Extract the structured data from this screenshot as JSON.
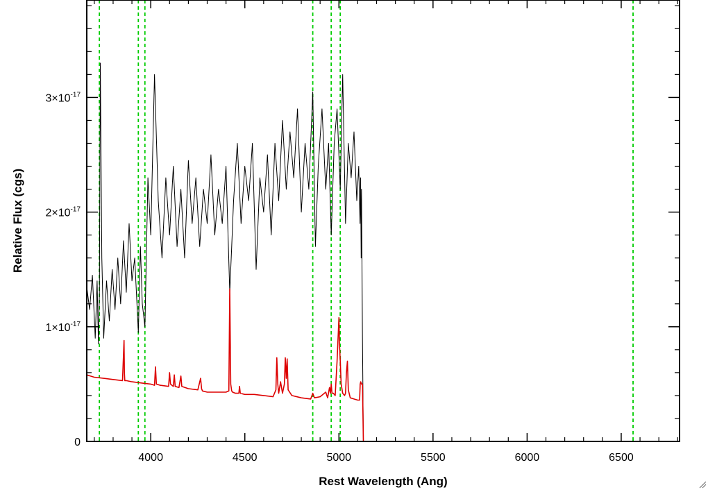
{
  "chart_data": {
    "type": "line",
    "xlabel": "Rest Wavelength (Ang)",
    "ylabel": "Relative Flux (cgs)",
    "xlim": [
      3660,
      6810
    ],
    "ylim": [
      0,
      3.85e-17
    ],
    "x_ticks": [
      {
        "value": 4000,
        "label": "4000"
      },
      {
        "value": 4500,
        "label": "4500"
      },
      {
        "value": 5000,
        "label": "5000"
      },
      {
        "value": 5500,
        "label": "5500"
      },
      {
        "value": 6000,
        "label": "6000"
      },
      {
        "value": 6500,
        "label": "6500"
      }
    ],
    "y_ticks": [
      {
        "value": 0,
        "mant": "0",
        "times": "",
        "base": "",
        "exp": ""
      },
      {
        "value": 1e-17,
        "mant": "1",
        "times": "×",
        "base": "10",
        "exp": "-17"
      },
      {
        "value": 2e-17,
        "mant": "2",
        "times": "×",
        "base": "10",
        "exp": "-17"
      },
      {
        "value": 3e-17,
        "mant": "3",
        "times": "×",
        "base": "10",
        "exp": "-17"
      }
    ],
    "vlines": [
      3727,
      3934,
      3969,
      4861,
      4959,
      5007,
      6563
    ],
    "vline_color": "#00cc00",
    "series": [
      {
        "color": "#000000",
        "x": [
          3660,
          3675,
          3690,
          3705,
          3715,
          3722,
          3727,
          3732,
          3740,
          3750,
          3765,
          3780,
          3795,
          3810,
          3825,
          3840,
          3855,
          3870,
          3885,
          3900,
          3915,
          3934,
          3945,
          3955,
          3969,
          3985,
          4000,
          4020,
          4040,
          4060,
          4080,
          4100,
          4120,
          4140,
          4160,
          4180,
          4200,
          4220,
          4240,
          4260,
          4280,
          4300,
          4320,
          4340,
          4360,
          4380,
          4400,
          4420,
          4430,
          4440,
          4460,
          4480,
          4500,
          4520,
          4540,
          4560,
          4580,
          4600,
          4620,
          4640,
          4660,
          4680,
          4700,
          4720,
          4740,
          4760,
          4780,
          4800,
          4820,
          4840,
          4861,
          4875,
          4890,
          4910,
          4930,
          4945,
          4959,
          4975,
          4990,
          5007,
          5020,
          5035,
          5050,
          5065,
          5080,
          5095,
          5105,
          5112,
          5115,
          5118,
          5120,
          5125,
          5130
        ],
        "y": [
          1.35e-17,
          1.15e-17,
          1.45e-17,
          9e-18,
          1.4e-17,
          8.5e-18,
          1.3e-17,
          3.3e-17,
          1.6e-17,
          9e-18,
          1.4e-17,
          1.05e-17,
          1.5e-17,
          1.15e-17,
          1.6e-17,
          1.2e-17,
          1.75e-17,
          1.3e-17,
          1.9e-17,
          1.4e-17,
          1.6e-17,
          9.5e-18,
          1.7e-17,
          1.2e-17,
          1e-17,
          2.3e-17,
          1.8e-17,
          3.2e-17,
          2.1e-17,
          1.6e-17,
          2.3e-17,
          1.8e-17,
          2.4e-17,
          1.7e-17,
          2.2e-17,
          1.6e-17,
          2.45e-17,
          1.9e-17,
          2.3e-17,
          1.7e-17,
          2.2e-17,
          1.9e-17,
          2.5e-17,
          1.8e-17,
          2.2e-17,
          1.9e-17,
          2.4e-17,
          1.3e-17,
          1.7e-17,
          2.1e-17,
          2.6e-17,
          1.9e-17,
          2.4e-17,
          2.1e-17,
          2.6e-17,
          1.5e-17,
          2.3e-17,
          2e-17,
          2.5e-17,
          1.8e-17,
          2.6e-17,
          2.1e-17,
          2.8e-17,
          2.2e-17,
          2.7e-17,
          2.3e-17,
          2.9e-17,
          2e-17,
          2.6e-17,
          2.2e-17,
          3.05e-17,
          1.7e-17,
          2.4e-17,
          2.9e-17,
          2.2e-17,
          2.6e-17,
          1.8e-17,
          2.6e-17,
          2.9e-17,
          2.2e-17,
          3.2e-17,
          1.9e-17,
          2.6e-17,
          2.3e-17,
          2.7e-17,
          2.1e-17,
          2.4e-17,
          1.9e-17,
          2.3e-17,
          1.6e-17,
          2.2e-17,
          9e-18,
          0
        ]
      },
      {
        "color": "#dd0000",
        "x": [
          3660,
          3700,
          3750,
          3800,
          3850,
          3858,
          3860,
          3862,
          3870,
          3900,
          3950,
          4000,
          4020,
          4025,
          4030,
          4050,
          4095,
          4100,
          4105,
          4120,
          4125,
          4130,
          4150,
          4160,
          4165,
          4200,
          4250,
          4265,
          4270,
          4275,
          4300,
          4340,
          4400,
          4415,
          4420,
          4425,
          4430,
          4435,
          4450,
          4468,
          4472,
          4476,
          4500,
          4550,
          4600,
          4650,
          4665,
          4670,
          4675,
          4680,
          4690,
          4700,
          4710,
          4715,
          4720,
          4725,
          4730,
          4750,
          4800,
          4850,
          4861,
          4870,
          4900,
          4930,
          4940,
          4950,
          4955,
          4959,
          4963,
          4970,
          4980,
          4990,
          5000,
          5003,
          5007,
          5012,
          5020,
          5030,
          5035,
          5040,
          5045,
          5050,
          5060,
          5080,
          5100,
          5110,
          5113,
          5116,
          5120,
          5125,
          5128,
          5130,
          5200,
          5400,
          5600,
          6000,
          6400,
          6810
        ],
        "y": [
          5.8e-18,
          5.6e-18,
          5.5e-18,
          5.4e-18,
          5.3e-18,
          8.8e-18,
          6e-18,
          5.3e-18,
          5.3e-18,
          5.2e-18,
          5.1e-18,
          5e-18,
          4.9e-18,
          6.5e-18,
          5e-18,
          4.9e-18,
          4.8e-18,
          6e-18,
          5e-18,
          4.8e-18,
          5.8e-18,
          4.8e-18,
          4.7e-18,
          5.7e-18,
          4.8e-18,
          4.6e-18,
          4.5e-18,
          5.5e-18,
          4.6e-18,
          4.4e-18,
          4.3e-18,
          4.3e-18,
          4.3e-18,
          4.4e-18,
          1.33e-17,
          5e-18,
          4.4e-18,
          4.3e-18,
          4.2e-18,
          4.2e-18,
          4.8e-18,
          4.2e-18,
          4.1e-18,
          4.1e-18,
          4e-18,
          3.9e-18,
          4.5e-18,
          7.3e-18,
          5e-18,
          4.2e-18,
          5.2e-18,
          4.2e-18,
          5e-18,
          7.3e-18,
          5.5e-18,
          7.2e-18,
          4.5e-18,
          4e-18,
          3.8e-18,
          3.7e-18,
          4.2e-18,
          3.8e-18,
          3.9e-18,
          4.3e-18,
          3.8e-18,
          4.7e-18,
          4.2e-18,
          5e-18,
          4.2e-18,
          4.2e-18,
          4e-18,
          7e-18,
          1.08e-17,
          8.5e-18,
          7e-18,
          5e-18,
          4.2e-18,
          4e-18,
          4.2e-18,
          6e-18,
          7e-18,
          4.5e-18,
          3.8e-18,
          3.7e-18,
          3.6e-18,
          3.6e-18,
          5e-18,
          5.2e-18,
          5e-18,
          5e-18,
          2e-18,
          0,
          0,
          0,
          0,
          0,
          0,
          0
        ]
      }
    ]
  }
}
